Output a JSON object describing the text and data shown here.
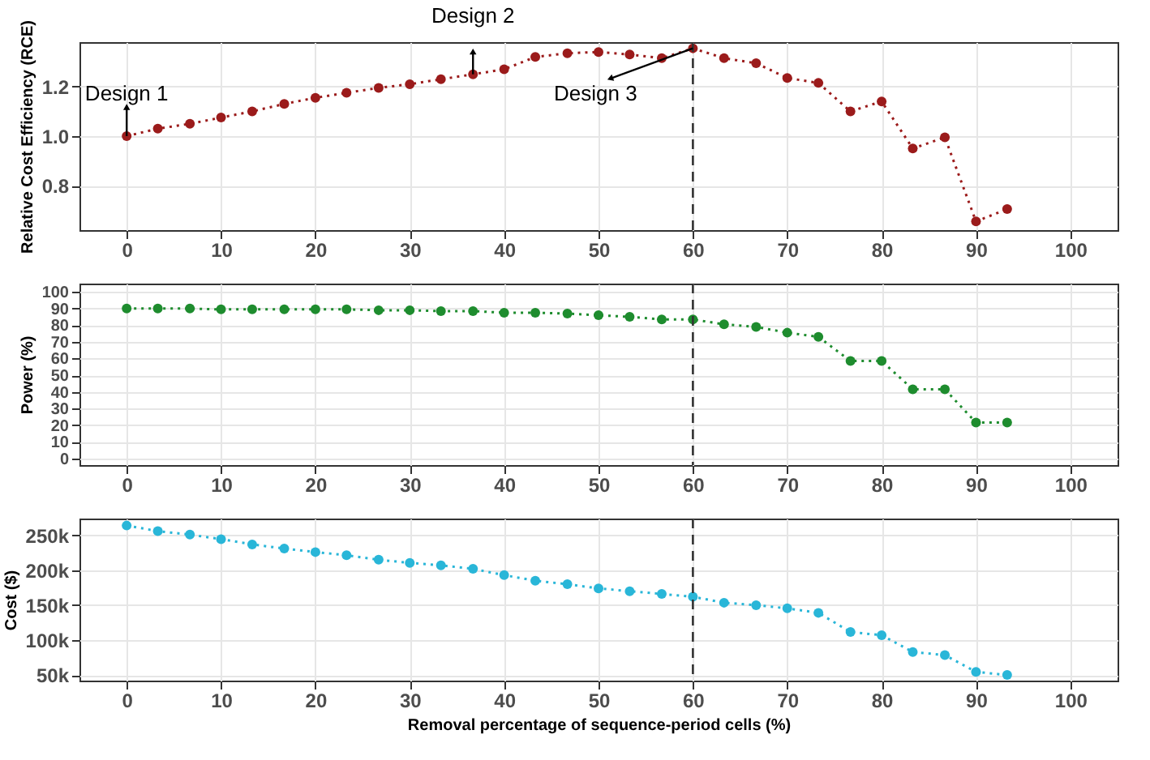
{
  "chart_data": [
    {
      "type": "line",
      "ylabel": "Relative Cost Efficiency (RCE)",
      "x": [
        0,
        3.3,
        6.7,
        10,
        13.3,
        16.7,
        20,
        23.3,
        26.7,
        30,
        33.3,
        36.7,
        40,
        43.3,
        46.7,
        50,
        53.3,
        56.7,
        60,
        63.3,
        66.7,
        70,
        73.3,
        76.7,
        80,
        83.3,
        86.7,
        90,
        93.3
      ],
      "series": [
        {
          "color": "#9b1b1b",
          "values": [
            1.0,
            1.03,
            1.05,
            1.075,
            1.1,
            1.13,
            1.155,
            1.175,
            1.195,
            1.21,
            1.23,
            1.25,
            1.27,
            1.32,
            1.335,
            1.34,
            1.33,
            1.315,
            1.355,
            1.315,
            1.295,
            1.235,
            1.215,
            1.1,
            1.14,
            0.95,
            0.995,
            0.655,
            0.705
          ]
        }
      ],
      "xlim": [
        -5,
        105
      ],
      "xticks": [
        0,
        10,
        20,
        30,
        40,
        50,
        60,
        70,
        80,
        90,
        100
      ],
      "ylim": [
        0.62,
        1.38
      ],
      "yticks": [
        {
          "value": 0.8,
          "label": "0.8"
        },
        {
          "value": 1,
          "label": "1.0"
        },
        {
          "value": 1.2,
          "label": "1.2"
        }
      ],
      "grid": true,
      "marker": "circle",
      "line_style": "dotted",
      "ref_lines": [
        {
          "axis": "x",
          "value": 60,
          "line_style": "dashed"
        }
      ],
      "annotations": [
        {
          "text": "Design 1",
          "x": 0,
          "y": 1.0
        },
        {
          "text": "Design 2",
          "x": 36.7,
          "y": 1.25
        },
        {
          "text": "Design 3",
          "x": 60,
          "y": 1.355
        }
      ]
    },
    {
      "type": "line",
      "ylabel": "Power (%)",
      "x": [
        0,
        3.3,
        6.7,
        10,
        13.3,
        16.7,
        20,
        23.3,
        26.7,
        30,
        33.3,
        36.7,
        40,
        43.3,
        46.7,
        50,
        53.3,
        56.7,
        60,
        63.3,
        66.7,
        70,
        73.3,
        76.7,
        80,
        83.3,
        86.7,
        90,
        93.3
      ],
      "series": [
        {
          "color": "#1e8c2e",
          "values": [
            90,
            90,
            90,
            89.5,
            89.5,
            89.5,
            89.5,
            89.5,
            89,
            89,
            88.5,
            88.5,
            87.5,
            87.5,
            87,
            86,
            85,
            83.5,
            83.5,
            80.5,
            79,
            75.5,
            73,
            58.5,
            58.5,
            41.5,
            41.5,
            21.5,
            21.5
          ]
        }
      ],
      "xlim": [
        -5,
        105
      ],
      "xticks": [
        0,
        10,
        20,
        30,
        40,
        50,
        60,
        70,
        80,
        90,
        100
      ],
      "ylim": [
        -4,
        105
      ],
      "yticks": [
        0,
        10,
        20,
        30,
        40,
        50,
        60,
        70,
        80,
        90,
        100
      ],
      "grid": true,
      "marker": "circle",
      "line_style": "dotted",
      "ref_lines": [
        {
          "axis": "x",
          "value": 60,
          "line_style": "dashed"
        }
      ]
    },
    {
      "type": "line",
      "xlabel": "Removal percentage of sequence-period cells (%)",
      "ylabel": "Cost ($)",
      "x": [
        0,
        3.3,
        6.7,
        10,
        13.3,
        16.7,
        20,
        23.3,
        26.7,
        30,
        33.3,
        36.7,
        40,
        43.3,
        46.7,
        50,
        53.3,
        56.7,
        60,
        63.3,
        66.7,
        70,
        73.3,
        76.7,
        80,
        83.3,
        86.7,
        90,
        93.3
      ],
      "series": [
        {
          "color": "#29b6d8",
          "values": [
            264000,
            256000,
            251000,
            244500,
            237000,
            231000,
            226000,
            221500,
            215000,
            210500,
            207000,
            202000,
            193000,
            185000,
            180000,
            174000,
            170000,
            166000,
            162000,
            153500,
            150000,
            145500,
            139000,
            111500,
            107000,
            83000,
            78500,
            54500,
            50000
          ]
        }
      ],
      "xlim": [
        -5,
        105
      ],
      "xticks": [
        0,
        10,
        20,
        30,
        40,
        50,
        60,
        70,
        80,
        90,
        100
      ],
      "ylim": [
        42000,
        274000
      ],
      "yticks": [
        {
          "value": 50000,
          "label": "50k"
        },
        {
          "value": 100000,
          "label": "100k"
        },
        {
          "value": 150000,
          "label": "150k"
        },
        {
          "value": 200000,
          "label": "200k"
        },
        {
          "value": 250000,
          "label": "250k"
        }
      ],
      "grid": true,
      "marker": "circle",
      "line_style": "dotted",
      "ref_lines": [
        {
          "axis": "x",
          "value": 60,
          "line_style": "dashed"
        }
      ]
    }
  ]
}
